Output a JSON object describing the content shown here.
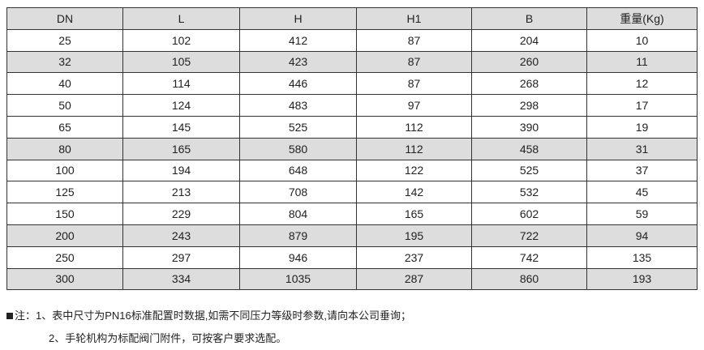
{
  "table": {
    "headers": [
      "DN",
      "L",
      "H",
      "H1",
      "B",
      "重量(Kg)"
    ],
    "rows": [
      [
        "25",
        "102",
        "412",
        "87",
        "204",
        "10"
      ],
      [
        "32",
        "105",
        "423",
        "87",
        "260",
        "11"
      ],
      [
        "40",
        "114",
        "446",
        "87",
        "268",
        "12"
      ],
      [
        "50",
        "124",
        "483",
        "97",
        "298",
        "17"
      ],
      [
        "65",
        "145",
        "525",
        "112",
        "390",
        "19"
      ],
      [
        "80",
        "165",
        "580",
        "112",
        "458",
        "31"
      ],
      [
        "100",
        "194",
        "648",
        "122",
        "525",
        "37"
      ],
      [
        "125",
        "213",
        "708",
        "142",
        "532",
        "45"
      ],
      [
        "150",
        "229",
        "804",
        "165",
        "602",
        "59"
      ],
      [
        "200",
        "243",
        "879",
        "195",
        "722",
        "94"
      ],
      [
        "250",
        "297",
        "946",
        "237",
        "742",
        "135"
      ],
      [
        "300",
        "334",
        "1035",
        "287",
        "860",
        "193"
      ]
    ],
    "shaded_rows": [
      1,
      5,
      9,
      11
    ]
  },
  "notes": {
    "prefix": "注：",
    "line1": "1、表中尺寸为PN16标准配置时数据,如需不同压力等级时参数,请向本公司垂询；",
    "line2": "2、手轮机构为标配阀门附件，可按客户要求选配。"
  }
}
